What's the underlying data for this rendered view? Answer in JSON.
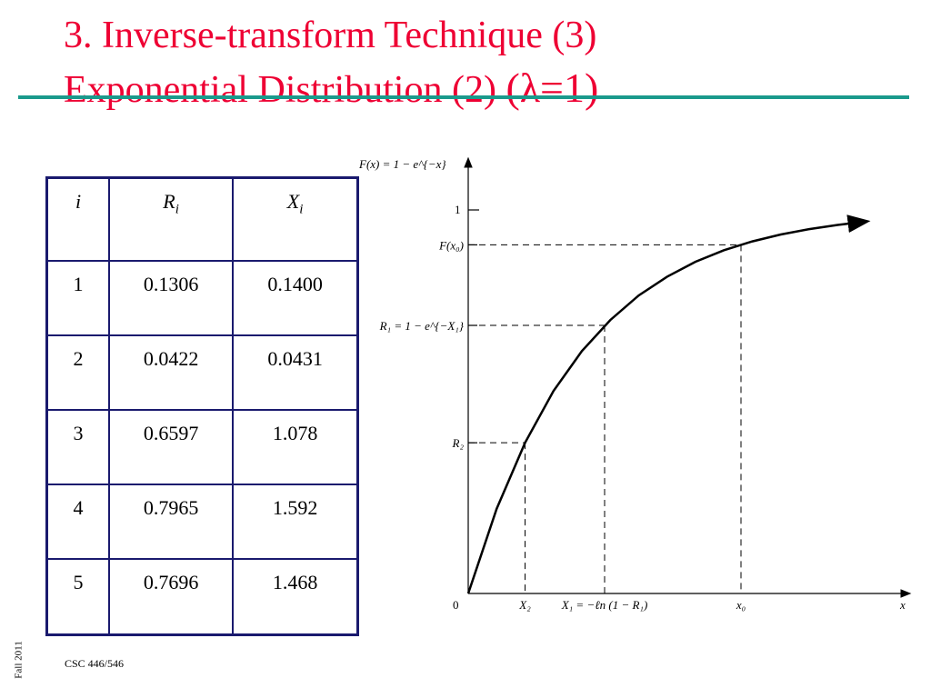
{
  "title": {
    "line1": "3. Inverse-transform Technique (3)",
    "line2_text": "Exponential Distribution (2) ",
    "line2_symbol": "(λ=1)"
  },
  "table": {
    "headers": [
      "i",
      "R",
      "X"
    ],
    "header_subscripts": [
      "",
      "i",
      "i"
    ],
    "rows": [
      [
        "1",
        "0.1306",
        "0.1400"
      ],
      [
        "2",
        "0.0422",
        "0.0431"
      ],
      [
        "3",
        "0.6597",
        "1.078"
      ],
      [
        "4",
        "0.7965",
        "1.592"
      ],
      [
        "5",
        "0.7696",
        "1.468"
      ]
    ]
  },
  "chart_data": {
    "type": "line",
    "function": "F(x) = 1 − e^(−x)",
    "x": [
      0,
      0.25,
      0.5,
      0.75,
      1.0,
      1.25,
      1.5,
      1.75,
      2.0,
      2.25,
      2.5,
      2.75,
      3.0,
      3.25,
      3.5
    ],
    "y": [
      0,
      0.221,
      0.393,
      0.528,
      0.632,
      0.713,
      0.777,
      0.826,
      0.865,
      0.895,
      0.918,
      0.936,
      0.95,
      0.961,
      0.97
    ],
    "ylabel": "F(x) = 1 − e^{−x}",
    "xlabel": "x",
    "y_tick": "1",
    "origin_label": "0",
    "guides": [
      {
        "x": 0.5,
        "y": 0.393,
        "x_label": "X₂",
        "y_label": "R₂"
      },
      {
        "x": 1.2,
        "y": 0.699,
        "x_label": "X₁ = −ℓn (1 − R₁)",
        "y_label": "R₁ = 1 − e^{−X₁}"
      },
      {
        "x": 2.4,
        "y": 0.909,
        "x_label": "x₀",
        "y_label": "F(x₀)"
      }
    ],
    "xlim": [
      0,
      3.6
    ],
    "ylim": [
      0,
      1.15
    ]
  },
  "footer": {
    "course": "CSC 446/546",
    "term": "Fall 2011"
  },
  "colors": {
    "title": "#ee0033",
    "rule": "#1a9a8c",
    "table_border": "#1a1a6e"
  }
}
